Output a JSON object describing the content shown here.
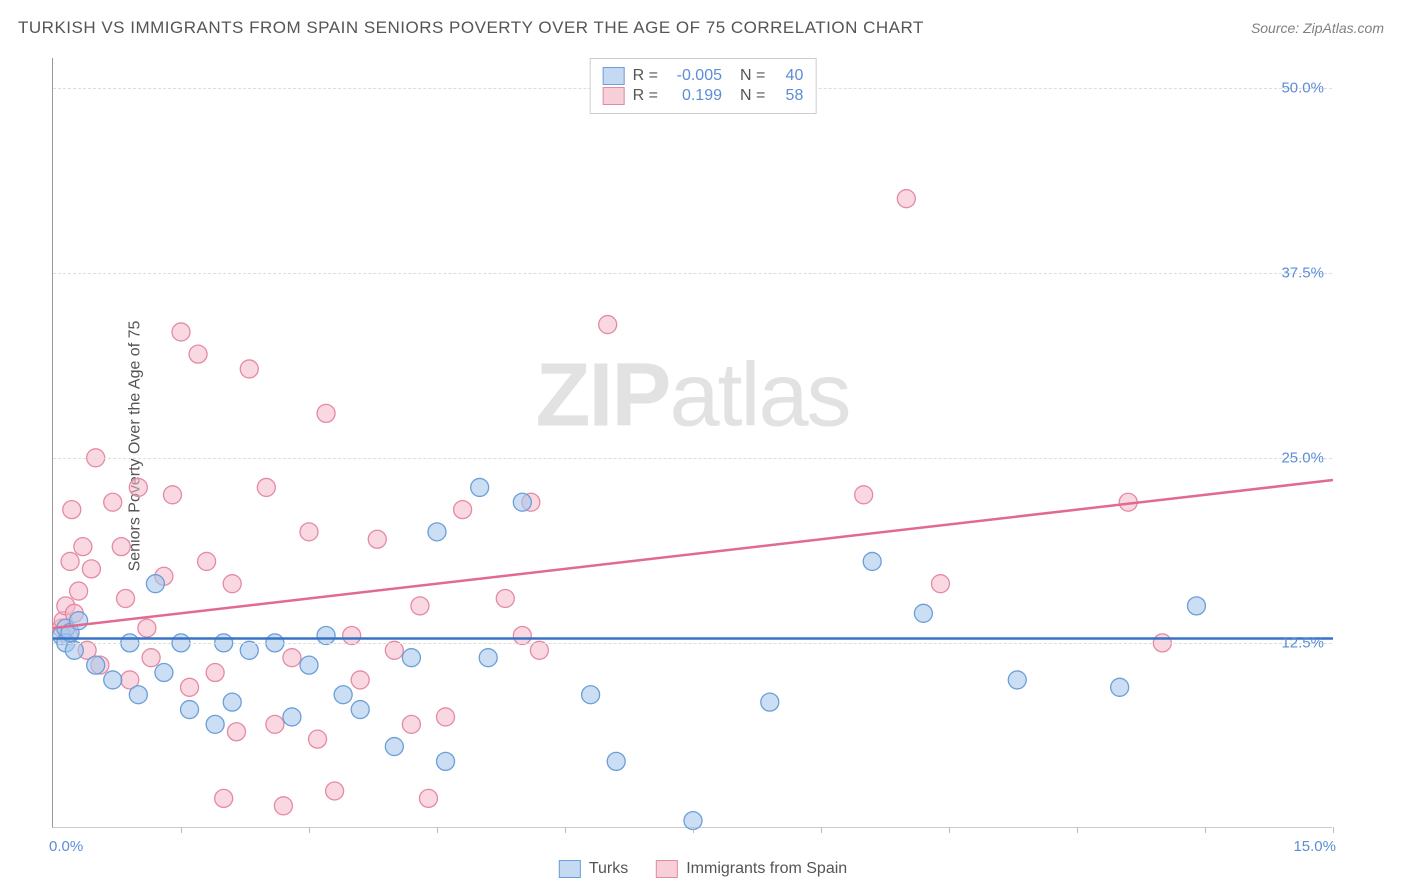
{
  "title": "TURKISH VS IMMIGRANTS FROM SPAIN SENIORS POVERTY OVER THE AGE OF 75 CORRELATION CHART",
  "source": "Source: ZipAtlas.com",
  "watermark_a": "ZIP",
  "watermark_b": "atlas",
  "y_axis": {
    "label": "Seniors Poverty Over the Age of 75",
    "ticks": [
      {
        "v": 12.5,
        "label": "12.5%"
      },
      {
        "v": 25.0,
        "label": "25.0%"
      },
      {
        "v": 37.5,
        "label": "37.5%"
      },
      {
        "v": 50.0,
        "label": "50.0%"
      }
    ],
    "min": 0.0,
    "max": 52.0
  },
  "x_axis": {
    "min": 0.0,
    "max": 15.0,
    "label_left": "0.0%",
    "label_right": "15.0%",
    "tick_positions": [
      1.5,
      3.0,
      4.5,
      6.0,
      7.5,
      9.0,
      10.5,
      12.0,
      13.5,
      15.0
    ]
  },
  "top_legend": [
    {
      "color": "blue",
      "r_label": "R =",
      "r": "-0.005",
      "n_label": "N =",
      "n": "40"
    },
    {
      "color": "pink",
      "r_label": "R =",
      "r": "0.199",
      "n_label": "N =",
      "n": "58"
    }
  ],
  "bottom_legend": [
    {
      "color": "blue",
      "label": "Turks"
    },
    {
      "color": "pink",
      "label": "Immigrants from Spain"
    }
  ],
  "colors": {
    "blue_fill": "#a8c8ec",
    "blue_stroke": "#6b9fd8",
    "blue_line": "#3973c6",
    "pink_fill": "#f5b8c8",
    "pink_stroke": "#e48aa4",
    "pink_line": "#e06b8f",
    "tick_text": "#5b8dd6",
    "text": "#555555",
    "grid": "#dddddd"
  },
  "marker_radius": 9,
  "trend_lines": {
    "blue": {
      "y_at_x0": 12.8,
      "y_at_xmax": 12.8
    },
    "pink": {
      "y_at_x0": 13.5,
      "y_at_xmax": 23.5
    }
  },
  "points_blue": [
    {
      "x": 0.1,
      "y": 13.0
    },
    {
      "x": 0.15,
      "y": 13.5
    },
    {
      "x": 0.15,
      "y": 12.5
    },
    {
      "x": 0.2,
      "y": 13.2
    },
    {
      "x": 0.25,
      "y": 12.0
    },
    {
      "x": 0.3,
      "y": 14.0
    },
    {
      "x": 0.5,
      "y": 11.0
    },
    {
      "x": 0.7,
      "y": 10.0
    },
    {
      "x": 0.9,
      "y": 12.5
    },
    {
      "x": 1.0,
      "y": 9.0
    },
    {
      "x": 1.2,
      "y": 16.5
    },
    {
      "x": 1.3,
      "y": 10.5
    },
    {
      "x": 1.5,
      "y": 12.5
    },
    {
      "x": 1.6,
      "y": 8.0
    },
    {
      "x": 1.9,
      "y": 7.0
    },
    {
      "x": 2.0,
      "y": 12.5
    },
    {
      "x": 2.1,
      "y": 8.5
    },
    {
      "x": 2.3,
      "y": 12.0
    },
    {
      "x": 2.6,
      "y": 12.5
    },
    {
      "x": 2.8,
      "y": 7.5
    },
    {
      "x": 3.0,
      "y": 11.0
    },
    {
      "x": 3.2,
      "y": 13.0
    },
    {
      "x": 3.4,
      "y": 9.0
    },
    {
      "x": 3.6,
      "y": 8.0
    },
    {
      "x": 4.0,
      "y": 5.5
    },
    {
      "x": 4.2,
      "y": 11.5
    },
    {
      "x": 4.5,
      "y": 20.0
    },
    {
      "x": 4.6,
      "y": 4.5
    },
    {
      "x": 5.0,
      "y": 23.0
    },
    {
      "x": 5.1,
      "y": 11.5
    },
    {
      "x": 5.5,
      "y": 22.0
    },
    {
      "x": 6.3,
      "y": 9.0
    },
    {
      "x": 6.6,
      "y": 4.5
    },
    {
      "x": 7.5,
      "y": 0.5
    },
    {
      "x": 8.4,
      "y": 8.5
    },
    {
      "x": 9.6,
      "y": 18.0
    },
    {
      "x": 10.2,
      "y": 14.5
    },
    {
      "x": 11.3,
      "y": 10.0
    },
    {
      "x": 12.5,
      "y": 9.5
    },
    {
      "x": 13.4,
      "y": 15.0
    }
  ],
  "points_pink": [
    {
      "x": 0.1,
      "y": 13.5
    },
    {
      "x": 0.12,
      "y": 14.0
    },
    {
      "x": 0.15,
      "y": 15.0
    },
    {
      "x": 0.18,
      "y": 13.0
    },
    {
      "x": 0.2,
      "y": 18.0
    },
    {
      "x": 0.22,
      "y": 21.5
    },
    {
      "x": 0.25,
      "y": 14.5
    },
    {
      "x": 0.3,
      "y": 16.0
    },
    {
      "x": 0.35,
      "y": 19.0
    },
    {
      "x": 0.4,
      "y": 12.0
    },
    {
      "x": 0.45,
      "y": 17.5
    },
    {
      "x": 0.5,
      "y": 25.0
    },
    {
      "x": 0.55,
      "y": 11.0
    },
    {
      "x": 0.7,
      "y": 22.0
    },
    {
      "x": 0.8,
      "y": 19.0
    },
    {
      "x": 0.85,
      "y": 15.5
    },
    {
      "x": 0.9,
      "y": 10.0
    },
    {
      "x": 1.0,
      "y": 23.0
    },
    {
      "x": 1.1,
      "y": 13.5
    },
    {
      "x": 1.15,
      "y": 11.5
    },
    {
      "x": 1.3,
      "y": 17.0
    },
    {
      "x": 1.4,
      "y": 22.5
    },
    {
      "x": 1.5,
      "y": 33.5
    },
    {
      "x": 1.6,
      "y": 9.5
    },
    {
      "x": 1.7,
      "y": 32.0
    },
    {
      "x": 1.8,
      "y": 18.0
    },
    {
      "x": 1.9,
      "y": 10.5
    },
    {
      "x": 2.0,
      "y": 2.0
    },
    {
      "x": 2.1,
      "y": 16.5
    },
    {
      "x": 2.15,
      "y": 6.5
    },
    {
      "x": 2.3,
      "y": 31.0
    },
    {
      "x": 2.5,
      "y": 23.0
    },
    {
      "x": 2.6,
      "y": 7.0
    },
    {
      "x": 2.7,
      "y": 1.5
    },
    {
      "x": 2.8,
      "y": 11.5
    },
    {
      "x": 3.0,
      "y": 20.0
    },
    {
      "x": 3.1,
      "y": 6.0
    },
    {
      "x": 3.2,
      "y": 28.0
    },
    {
      "x": 3.3,
      "y": 2.5
    },
    {
      "x": 3.5,
      "y": 13.0
    },
    {
      "x": 3.6,
      "y": 10.0
    },
    {
      "x": 3.8,
      "y": 19.5
    },
    {
      "x": 4.0,
      "y": 12.0
    },
    {
      "x": 4.2,
      "y": 7.0
    },
    {
      "x": 4.3,
      "y": 15.0
    },
    {
      "x": 4.4,
      "y": 2.0
    },
    {
      "x": 4.6,
      "y": 7.5
    },
    {
      "x": 4.8,
      "y": 21.5
    },
    {
      "x": 5.3,
      "y": 15.5
    },
    {
      "x": 5.5,
      "y": 13.0
    },
    {
      "x": 5.6,
      "y": 22.0
    },
    {
      "x": 5.7,
      "y": 12.0
    },
    {
      "x": 6.5,
      "y": 34.0
    },
    {
      "x": 9.5,
      "y": 22.5
    },
    {
      "x": 10.0,
      "y": 42.5
    },
    {
      "x": 10.4,
      "y": 16.5
    },
    {
      "x": 12.6,
      "y": 22.0
    },
    {
      "x": 13.0,
      "y": 12.5
    }
  ]
}
